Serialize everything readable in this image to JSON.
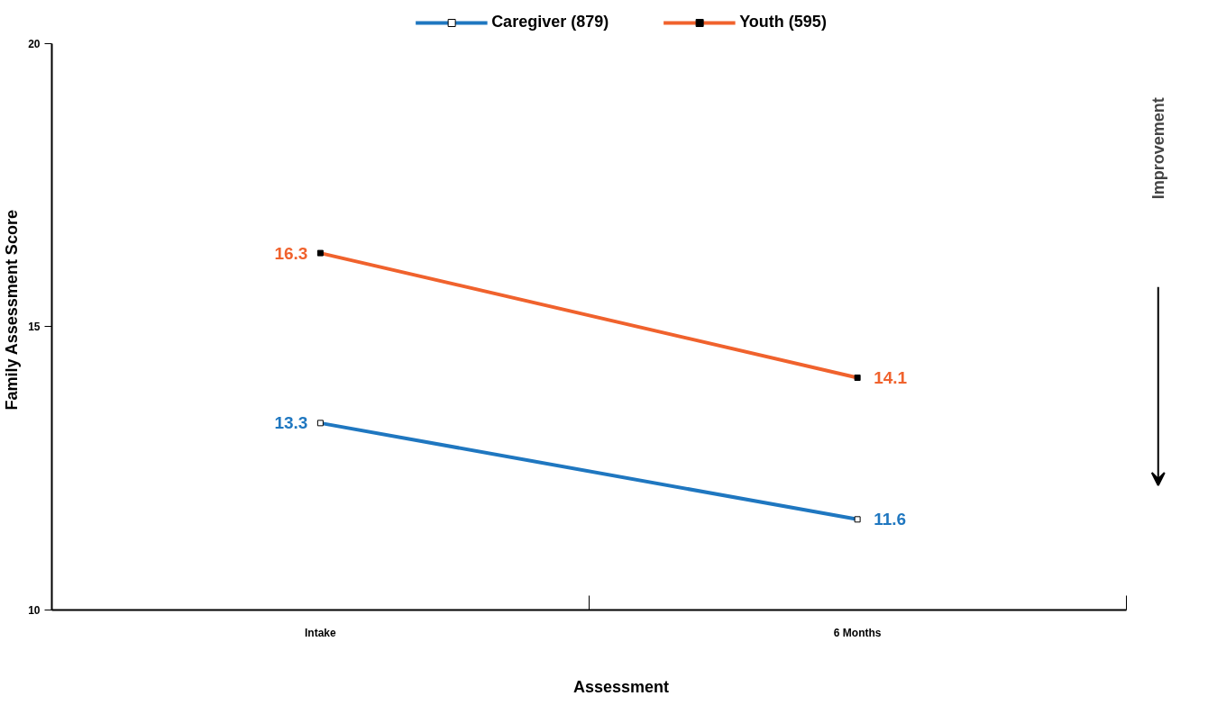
{
  "chart_data": {
    "type": "line",
    "xlabel": "Assessment",
    "ylabel": "Family Assessment Score",
    "categories": [
      "Intake",
      "6 Months"
    ],
    "series": [
      {
        "name": "Caregiver (879)",
        "color": "#1f77c0",
        "values": [
          13.3,
          11.6
        ]
      },
      {
        "name": "Youth (595)",
        "color": "#f0622d",
        "values": [
          16.3,
          14.1
        ]
      }
    ],
    "ylim": [
      10,
      20
    ],
    "yticks": [
      10,
      15,
      20
    ],
    "grid": false,
    "legend": "top",
    "marker": "square",
    "data_labels": true,
    "annotations": [
      "Improvement"
    ]
  }
}
